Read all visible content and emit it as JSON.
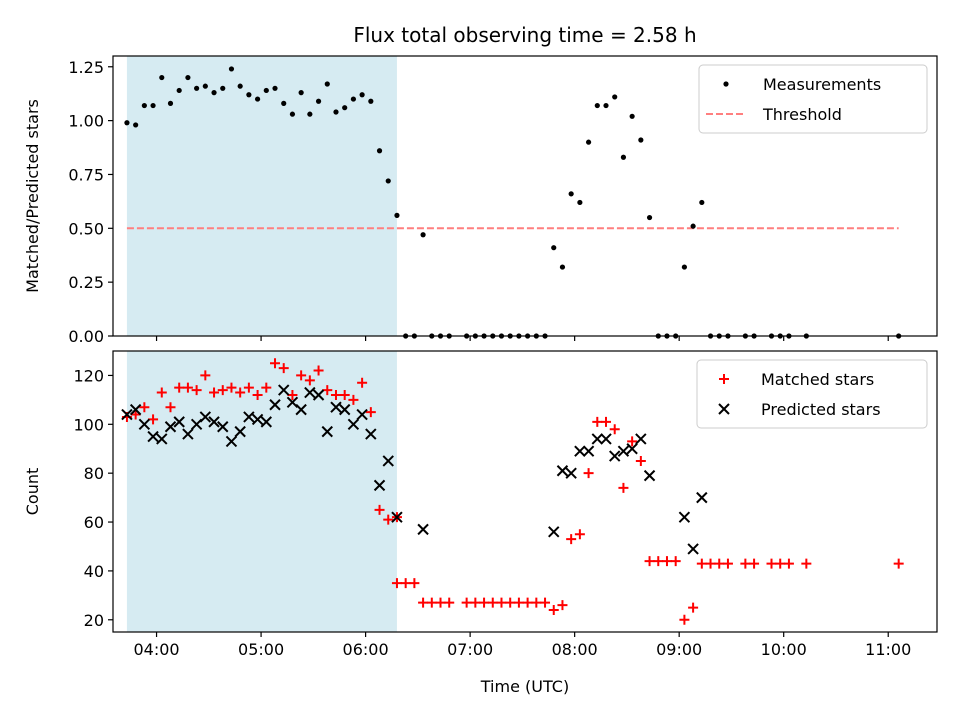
{
  "title": "Flux total observing time = 2.58 h",
  "colors": {
    "span": "#add8e6",
    "measurement": "#000000",
    "threshold": "#ff7f7f",
    "matched": "#ff0000",
    "predicted": "#000000"
  },
  "chart_data": [
    {
      "type": "scatter",
      "ylabel": "Matched/Predicted stars",
      "xlim": [
        "03:35",
        "11:28"
      ],
      "ylim": [
        0,
        1.3
      ],
      "y_ticks": [
        "0.00",
        "0.25",
        "0.50",
        "0.75",
        "1.00",
        "1.25"
      ],
      "shaded_span": [
        "03:43",
        "06:18"
      ],
      "threshold": {
        "y": 0.5,
        "x_range": [
          "03:43",
          "11:06"
        ]
      },
      "legend_position": "top-right",
      "legend": [
        "Measurements",
        "Threshold"
      ],
      "series": [
        {
          "name": "Measurements",
          "points": [
            [
              "03:43",
              0.99
            ],
            [
              "03:48",
              0.98
            ],
            [
              "03:53",
              1.07
            ],
            [
              "03:58",
              1.07
            ],
            [
              "04:03",
              1.2
            ],
            [
              "04:08",
              1.08
            ],
            [
              "04:13",
              1.14
            ],
            [
              "04:18",
              1.2
            ],
            [
              "04:23",
              1.15
            ],
            [
              "04:28",
              1.16
            ],
            [
              "04:33",
              1.13
            ],
            [
              "04:38",
              1.15
            ],
            [
              "04:43",
              1.24
            ],
            [
              "04:48",
              1.16
            ],
            [
              "04:53",
              1.12
            ],
            [
              "04:58",
              1.1
            ],
            [
              "05:03",
              1.14
            ],
            [
              "05:08",
              1.15
            ],
            [
              "05:13",
              1.08
            ],
            [
              "05:18",
              1.03
            ],
            [
              "05:23",
              1.13
            ],
            [
              "05:28",
              1.03
            ],
            [
              "05:33",
              1.09
            ],
            [
              "05:38",
              1.17
            ],
            [
              "05:43",
              1.04
            ],
            [
              "05:48",
              1.06
            ],
            [
              "05:53",
              1.1
            ],
            [
              "05:58",
              1.12
            ],
            [
              "06:03",
              1.09
            ],
            [
              "06:08",
              0.86
            ],
            [
              "06:13",
              0.72
            ],
            [
              "06:18",
              0.56
            ],
            [
              "06:23",
              0.0
            ],
            [
              "06:28",
              0.0
            ],
            [
              "06:33",
              0.47
            ],
            [
              "06:38",
              0.0
            ],
            [
              "06:43",
              0.0
            ],
            [
              "06:48",
              0.0
            ],
            [
              "06:58",
              0.0
            ],
            [
              "07:03",
              0.0
            ],
            [
              "07:08",
              0.0
            ],
            [
              "07:13",
              0.0
            ],
            [
              "07:18",
              0.0
            ],
            [
              "07:23",
              0.0
            ],
            [
              "07:28",
              0.0
            ],
            [
              "07:33",
              0.0
            ],
            [
              "07:38",
              0.0
            ],
            [
              "07:43",
              0.0
            ],
            [
              "07:48",
              0.41
            ],
            [
              "07:53",
              0.32
            ],
            [
              "07:58",
              0.66
            ],
            [
              "08:03",
              0.62
            ],
            [
              "08:08",
              0.9
            ],
            [
              "08:13",
              1.07
            ],
            [
              "08:18",
              1.07
            ],
            [
              "08:23",
              1.11
            ],
            [
              "08:28",
              0.83
            ],
            [
              "08:33",
              1.02
            ],
            [
              "08:38",
              0.91
            ],
            [
              "08:43",
              0.55
            ],
            [
              "08:48",
              0.0
            ],
            [
              "08:53",
              0.0
            ],
            [
              "08:58",
              0.0
            ],
            [
              "09:03",
              0.32
            ],
            [
              "09:08",
              0.51
            ],
            [
              "09:13",
              0.62
            ],
            [
              "09:18",
              0.0
            ],
            [
              "09:23",
              0.0
            ],
            [
              "09:28",
              0.0
            ],
            [
              "09:38",
              0.0
            ],
            [
              "09:43",
              0.0
            ],
            [
              "09:53",
              0.0
            ],
            [
              "09:58",
              0.0
            ],
            [
              "10:03",
              0.0
            ],
            [
              "10:13",
              0.0
            ],
            [
              "11:06",
              0.0
            ]
          ]
        }
      ]
    },
    {
      "type": "scatter",
      "xlabel": "Time (UTC)",
      "ylabel": "Count",
      "xlim": [
        "03:35",
        "11:28"
      ],
      "ylim": [
        15,
        130
      ],
      "x_ticks": [
        "04:00",
        "05:00",
        "06:00",
        "07:00",
        "08:00",
        "09:00",
        "10:00",
        "11:00"
      ],
      "y_ticks": [
        "20",
        "40",
        "60",
        "80",
        "100",
        "120"
      ],
      "shaded_span": [
        "03:43",
        "06:18"
      ],
      "legend_position": "top-right",
      "legend": [
        "Matched stars",
        "Predicted stars"
      ],
      "series": [
        {
          "name": "Matched stars",
          "points": [
            [
              "03:43",
              103
            ],
            [
              "03:48",
              104
            ],
            [
              "03:53",
              107
            ],
            [
              "03:58",
              102
            ],
            [
              "04:03",
              113
            ],
            [
              "04:08",
              107
            ],
            [
              "04:13",
              115
            ],
            [
              "04:18",
              115
            ],
            [
              "04:23",
              114
            ],
            [
              "04:28",
              120
            ],
            [
              "04:33",
              113
            ],
            [
              "04:38",
              114
            ],
            [
              "04:43",
              115
            ],
            [
              "04:48",
              113
            ],
            [
              "04:53",
              115
            ],
            [
              "04:58",
              112
            ],
            [
              "05:03",
              115
            ],
            [
              "05:08",
              125
            ],
            [
              "05:13",
              123
            ],
            [
              "05:18",
              112
            ],
            [
              "05:23",
              120
            ],
            [
              "05:28",
              118
            ],
            [
              "05:33",
              122
            ],
            [
              "05:38",
              114
            ],
            [
              "05:43",
              112
            ],
            [
              "05:48",
              112
            ],
            [
              "05:53",
              110
            ],
            [
              "05:58",
              117
            ],
            [
              "06:03",
              105
            ],
            [
              "06:08",
              65
            ],
            [
              "06:13",
              61
            ],
            [
              "06:18",
              62
            ],
            [
              "06:18",
              35
            ],
            [
              "06:23",
              35
            ],
            [
              "06:28",
              35
            ],
            [
              "06:33",
              27
            ],
            [
              "06:38",
              27
            ],
            [
              "06:43",
              27
            ],
            [
              "06:48",
              27
            ],
            [
              "06:58",
              27
            ],
            [
              "07:03",
              27
            ],
            [
              "07:08",
              27
            ],
            [
              "07:13",
              27
            ],
            [
              "07:18",
              27
            ],
            [
              "07:23",
              27
            ],
            [
              "07:28",
              27
            ],
            [
              "07:33",
              27
            ],
            [
              "07:38",
              27
            ],
            [
              "07:43",
              27
            ],
            [
              "07:48",
              24
            ],
            [
              "07:53",
              26
            ],
            [
              "07:58",
              53
            ],
            [
              "08:03",
              55
            ],
            [
              "08:08",
              80
            ],
            [
              "08:13",
              101
            ],
            [
              "08:18",
              101
            ],
            [
              "08:23",
              98
            ],
            [
              "08:28",
              74
            ],
            [
              "08:33",
              93
            ],
            [
              "08:38",
              85
            ],
            [
              "08:43",
              44
            ],
            [
              "08:48",
              44
            ],
            [
              "08:53",
              44
            ],
            [
              "08:58",
              44
            ],
            [
              "09:03",
              20
            ],
            [
              "09:08",
              25
            ],
            [
              "09:13",
              43
            ],
            [
              "09:18",
              43
            ],
            [
              "09:23",
              43
            ],
            [
              "09:28",
              43
            ],
            [
              "09:38",
              43
            ],
            [
              "09:43",
              43
            ],
            [
              "09:53",
              43
            ],
            [
              "09:58",
              43
            ],
            [
              "10:03",
              43
            ],
            [
              "10:13",
              43
            ],
            [
              "11:06",
              43
            ]
          ]
        },
        {
          "name": "Predicted stars",
          "points": [
            [
              "03:43",
              104
            ],
            [
              "03:48",
              106
            ],
            [
              "03:53",
              100
            ],
            [
              "03:58",
              95
            ],
            [
              "04:03",
              94
            ],
            [
              "04:08",
              99
            ],
            [
              "04:13",
              101
            ],
            [
              "04:18",
              96
            ],
            [
              "04:23",
              100
            ],
            [
              "04:28",
              103
            ],
            [
              "04:33",
              101
            ],
            [
              "04:38",
              99
            ],
            [
              "04:43",
              93
            ],
            [
              "04:48",
              97
            ],
            [
              "04:53",
              103
            ],
            [
              "04:58",
              102
            ],
            [
              "05:03",
              101
            ],
            [
              "05:08",
              108
            ],
            [
              "05:13",
              114
            ],
            [
              "05:18",
              109
            ],
            [
              "05:23",
              106
            ],
            [
              "05:28",
              113
            ],
            [
              "05:33",
              112
            ],
            [
              "05:38",
              97
            ],
            [
              "05:43",
              107
            ],
            [
              "05:48",
              106
            ],
            [
              "05:53",
              100
            ],
            [
              "05:58",
              104
            ],
            [
              "06:03",
              96
            ],
            [
              "06:08",
              75
            ],
            [
              "06:13",
              85
            ],
            [
              "06:18",
              62
            ],
            [
              "06:33",
              57
            ],
            [
              "07:48",
              56
            ],
            [
              "07:53",
              81
            ],
            [
              "07:58",
              80
            ],
            [
              "08:03",
              89
            ],
            [
              "08:08",
              89
            ],
            [
              "08:13",
              94
            ],
            [
              "08:18",
              94
            ],
            [
              "08:23",
              87
            ],
            [
              "08:28",
              89
            ],
            [
              "08:33",
              90
            ],
            [
              "08:38",
              94
            ],
            [
              "08:43",
              79
            ],
            [
              "09:03",
              62
            ],
            [
              "09:08",
              49
            ],
            [
              "09:13",
              70
            ]
          ]
        }
      ]
    }
  ]
}
